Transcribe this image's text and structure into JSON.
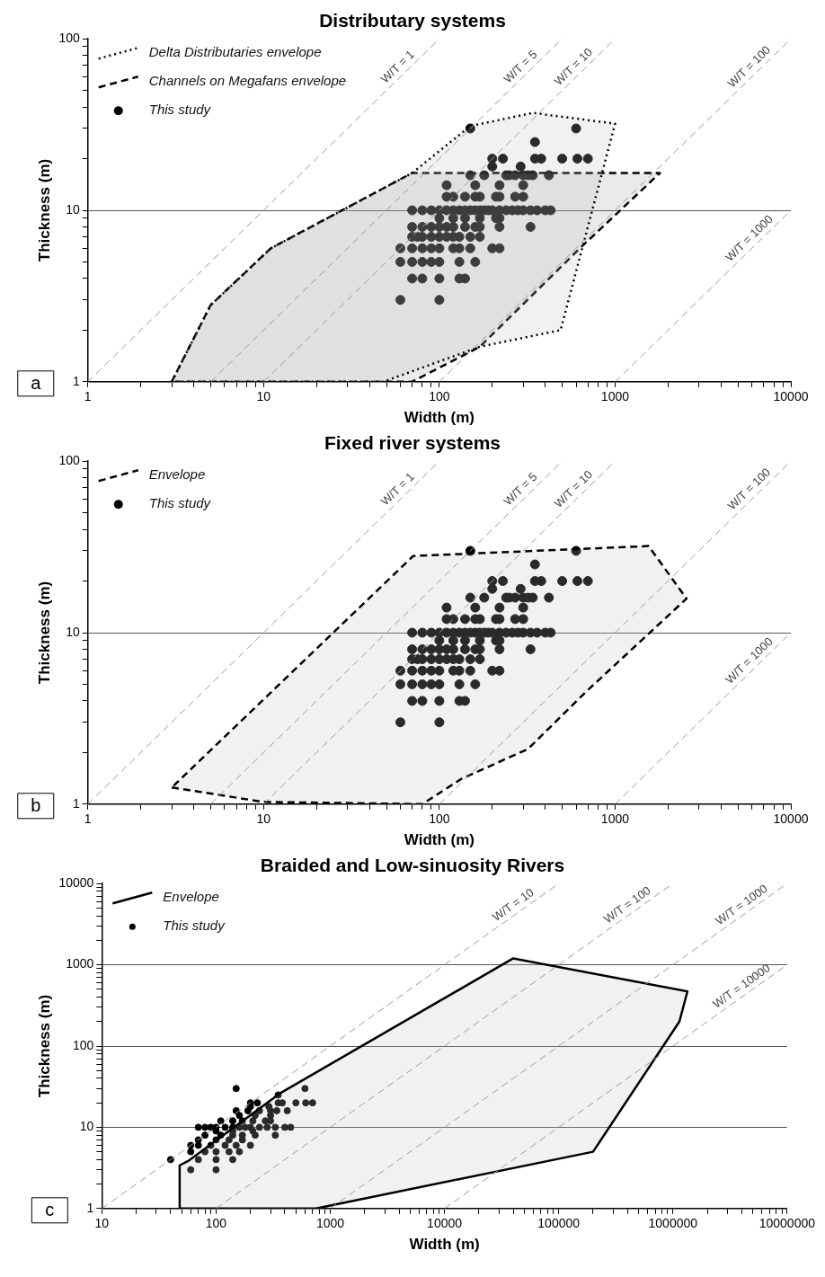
{
  "chart_data": [
    {
      "type": "scatter",
      "title": "Distributary systems",
      "xlabel": "Width (m)",
      "ylabel": "Thickness (m)",
      "annotations": [
        "a"
      ],
      "log": "xy",
      "grid": "y",
      "legend": "top left",
      "xlim": [
        1,
        10000
      ],
      "ylim": [
        1,
        100
      ],
      "xticks": [
        1,
        {
          "value": 2,
          "label": null
        },
        {
          "value": 3,
          "label": null
        },
        {
          "value": 4,
          "label": null
        },
        {
          "value": 5,
          "label": null
        },
        {
          "value": 6,
          "label": null
        },
        {
          "value": 7,
          "label": null
        },
        {
          "value": 8,
          "label": null
        },
        {
          "value": 9,
          "label": null
        },
        10,
        {
          "value": 20,
          "label": null
        },
        {
          "value": 30,
          "label": null
        },
        {
          "value": 40,
          "label": null
        },
        {
          "value": 50,
          "label": null
        },
        {
          "value": 60,
          "label": null
        },
        {
          "value": 70,
          "label": null
        },
        {
          "value": 80,
          "label": null
        },
        {
          "value": 90,
          "label": null
        },
        100,
        {
          "value": 200,
          "label": null
        },
        {
          "value": 300,
          "label": null
        },
        {
          "value": 400,
          "label": null
        },
        {
          "value": 500,
          "label": null
        },
        {
          "value": 600,
          "label": null
        },
        {
          "value": 700,
          "label": null
        },
        {
          "value": 800,
          "label": null
        },
        {
          "value": 900,
          "label": null
        },
        1000,
        {
          "value": 2000,
          "label": null
        },
        {
          "value": 3000,
          "label": null
        },
        {
          "value": 4000,
          "label": null
        },
        {
          "value": 5000,
          "label": null
        },
        {
          "value": 6000,
          "label": null
        },
        {
          "value": 7000,
          "label": null
        },
        {
          "value": 8000,
          "label": null
        },
        {
          "value": 9000,
          "label": null
        },
        10000
      ],
      "yticks": [
        1,
        {
          "value": 2,
          "label": null
        },
        {
          "value": 3,
          "label": null
        },
        {
          "value": 4,
          "label": null
        },
        {
          "value": 5,
          "label": null
        },
        {
          "value": 6,
          "label": null
        },
        {
          "value": 7,
          "label": null
        },
        {
          "value": 8,
          "label": null
        },
        {
          "value": 9,
          "label": null
        },
        10,
        {
          "value": 20,
          "label": null
        },
        {
          "value": 30,
          "label": null
        },
        {
          "value": 40,
          "label": null
        },
        {
          "value": 50,
          "label": null
        },
        {
          "value": 60,
          "label": null
        },
        {
          "value": 70,
          "label": null
        },
        {
          "value": 80,
          "label": null
        },
        {
          "value": 90,
          "label": null
        },
        100
      ],
      "series": [
        {
          "name": "W/T = 1",
          "type": "line",
          "line_style": "dashed",
          "marker": "none",
          "color": "#9a9a9a",
          "x": [
            1,
            100
          ],
          "values": [
            1,
            100
          ]
        },
        {
          "name": "W/T = 5",
          "type": "line",
          "line_style": "dashed",
          "marker": "none",
          "color": "#9a9a9a",
          "x": [
            5,
            500
          ],
          "values": [
            1,
            100
          ]
        },
        {
          "name": "W/T = 10",
          "type": "line",
          "line_style": "dashed",
          "marker": "none",
          "color": "#9a9a9a",
          "x": [
            10,
            1000
          ],
          "values": [
            1,
            100
          ]
        },
        {
          "name": "W/T = 100",
          "type": "line",
          "line_style": "dashed",
          "marker": "none",
          "color": "#9a9a9a",
          "x": [
            100,
            10000
          ],
          "values": [
            1,
            100
          ]
        },
        {
          "name": "W/T = 1000",
          "type": "line",
          "line_style": "dashed",
          "marker": "none",
          "color": "#9a9a9a",
          "x": [
            1000,
            10000
          ],
          "values": [
            1,
            10
          ]
        },
        {
          "name": "Delta Distributaries envelope",
          "type": "area",
          "line_style": "dotted",
          "marker": "none",
          "color": "#000000",
          "x": [
            3,
            5,
            11,
            70,
            150,
            340,
            1000,
            490,
            170,
            48,
            3
          ],
          "values": [
            1,
            2.8,
            6,
            16.5,
            31,
            37,
            32,
            2,
            1.6,
            1,
            1
          ]
        },
        {
          "name": "Channels on Megafans envelope",
          "type": "area",
          "line_style": "dashed",
          "marker": "none",
          "color": "#000000",
          "x": [
            3,
            5,
            11,
            70,
            1800,
            630,
            170,
            70,
            3
          ],
          "values": [
            1,
            2.8,
            6,
            16.5,
            16.5,
            6,
            1.6,
            1,
            1
          ]
        },
        {
          "name": "This study",
          "type": "scatter",
          "marker": "circle",
          "color": "#000000",
          "x": [
            60,
            100,
            70,
            80,
            100,
            130,
            140,
            60,
            70,
            80,
            90,
            100,
            130,
            160,
            60,
            70,
            80,
            90,
            100,
            120,
            130,
            150,
            200,
            220,
            70,
            75,
            80,
            90,
            100,
            110,
            120,
            130,
            150,
            170,
            70,
            80,
            90,
            100,
            110,
            120,
            140,
            160,
            170,
            220,
            330,
            100,
            120,
            140,
            170,
            210,
            220,
            70,
            80,
            90,
            100,
            110,
            120,
            130,
            140,
            150,
            160,
            170,
            180,
            190,
            200,
            220,
            240,
            260,
            280,
            300,
            330,
            360,
            400,
            430,
            110,
            120,
            140,
            160,
            170,
            210,
            220,
            270,
            300,
            110,
            160,
            220,
            300,
            150,
            180,
            240,
            250,
            270,
            300,
            320,
            340,
            420,
            200,
            290,
            200,
            230,
            350,
            380,
            500,
            610,
            700,
            350,
            150,
            600
          ],
          "values": [
            3,
            3,
            4,
            4,
            4,
            4,
            4,
            5,
            5,
            5,
            5,
            5,
            5,
            5,
            6,
            6,
            6,
            6,
            6,
            6,
            6,
            6,
            6,
            6,
            7,
            7,
            7,
            7,
            7,
            7,
            7,
            7,
            7,
            7,
            8,
            8,
            8,
            8,
            8,
            8,
            8,
            8,
            8,
            8,
            8,
            9,
            9,
            9,
            9,
            9,
            9,
            10,
            10,
            10,
            10,
            10,
            10,
            10,
            10,
            10,
            10,
            10,
            10,
            10,
            10,
            10,
            10,
            10,
            10,
            10,
            10,
            10,
            10,
            10,
            12,
            12,
            12,
            12,
            12,
            12,
            12,
            12,
            12,
            14,
            14,
            14,
            14,
            16,
            16,
            16,
            16,
            16,
            16,
            16,
            16,
            16,
            18,
            18,
            20,
            20,
            20,
            20,
            20,
            20,
            20,
            25,
            30,
            30
          ]
        }
      ]
    },
    {
      "type": "scatter",
      "title": "Fixed river systems",
      "xlabel": "Width (m)",
      "ylabel": "Thickness (m)",
      "annotations": [
        "b"
      ],
      "log": "xy",
      "grid": "y",
      "legend": "top left",
      "xlim": [
        1,
        10000
      ],
      "ylim": [
        1,
        100
      ],
      "xticks": [
        1,
        {
          "value": 2,
          "label": null
        },
        {
          "value": 3,
          "label": null
        },
        {
          "value": 4,
          "label": null
        },
        {
          "value": 5,
          "label": null
        },
        {
          "value": 6,
          "label": null
        },
        {
          "value": 7,
          "label": null
        },
        {
          "value": 8,
          "label": null
        },
        {
          "value": 9,
          "label": null
        },
        10,
        {
          "value": 20,
          "label": null
        },
        {
          "value": 30,
          "label": null
        },
        {
          "value": 40,
          "label": null
        },
        {
          "value": 50,
          "label": null
        },
        {
          "value": 60,
          "label": null
        },
        {
          "value": 70,
          "label": null
        },
        {
          "value": 80,
          "label": null
        },
        {
          "value": 90,
          "label": null
        },
        100,
        {
          "value": 200,
          "label": null
        },
        {
          "value": 300,
          "label": null
        },
        {
          "value": 400,
          "label": null
        },
        {
          "value": 500,
          "label": null
        },
        {
          "value": 600,
          "label": null
        },
        {
          "value": 700,
          "label": null
        },
        {
          "value": 800,
          "label": null
        },
        {
          "value": 900,
          "label": null
        },
        1000,
        {
          "value": 2000,
          "label": null
        },
        {
          "value": 3000,
          "label": null
        },
        {
          "value": 4000,
          "label": null
        },
        {
          "value": 5000,
          "label": null
        },
        {
          "value": 6000,
          "label": null
        },
        {
          "value": 7000,
          "label": null
        },
        {
          "value": 8000,
          "label": null
        },
        {
          "value": 9000,
          "label": null
        },
        10000
      ],
      "yticks": [
        1,
        {
          "value": 2,
          "label": null
        },
        {
          "value": 3,
          "label": null
        },
        {
          "value": 4,
          "label": null
        },
        {
          "value": 5,
          "label": null
        },
        {
          "value": 6,
          "label": null
        },
        {
          "value": 7,
          "label": null
        },
        {
          "value": 8,
          "label": null
        },
        {
          "value": 9,
          "label": null
        },
        10,
        {
          "value": 20,
          "label": null
        },
        {
          "value": 30,
          "label": null
        },
        {
          "value": 40,
          "label": null
        },
        {
          "value": 50,
          "label": null
        },
        {
          "value": 60,
          "label": null
        },
        {
          "value": 70,
          "label": null
        },
        {
          "value": 80,
          "label": null
        },
        {
          "value": 90,
          "label": null
        },
        100
      ],
      "series": [
        {
          "name": "W/T = 1",
          "type": "line",
          "line_style": "dashed",
          "marker": "none",
          "color": "#9a9a9a",
          "x": [
            1,
            100
          ],
          "values": [
            1,
            100
          ]
        },
        {
          "name": "W/T = 5",
          "type": "line",
          "line_style": "dashed",
          "marker": "none",
          "color": "#9a9a9a",
          "x": [
            5,
            500
          ],
          "values": [
            1,
            100
          ]
        },
        {
          "name": "W/T = 10",
          "type": "line",
          "line_style": "dashed",
          "marker": "none",
          "color": "#9a9a9a",
          "x": [
            10,
            1000
          ],
          "values": [
            1,
            100
          ]
        },
        {
          "name": "W/T = 100",
          "type": "line",
          "line_style": "dashed",
          "marker": "none",
          "color": "#9a9a9a",
          "x": [
            100,
            10000
          ],
          "values": [
            1,
            100
          ]
        },
        {
          "name": "W/T = 1000",
          "type": "line",
          "line_style": "dashed",
          "marker": "none",
          "color": "#9a9a9a",
          "x": [
            1000,
            10000
          ],
          "values": [
            1,
            10
          ]
        },
        {
          "name": "Envelope",
          "type": "area",
          "line_style": "dashed",
          "marker": "none",
          "color": "#000000",
          "x": [
            3,
            10,
            80,
            133,
            320,
            680,
            2550,
            1550,
            71,
            3
          ],
          "values": [
            1.25,
            1.03,
            1,
            1.4,
            2.1,
            4.5,
            15.8,
            32,
            28,
            1.25
          ]
        },
        {
          "name": "This study",
          "type": "scatter",
          "marker": "circle",
          "color": "#000000",
          "x": [
            60,
            100,
            70,
            80,
            100,
            130,
            140,
            60,
            70,
            80,
            90,
            100,
            130,
            160,
            60,
            70,
            80,
            90,
            100,
            120,
            130,
            150,
            200,
            220,
            70,
            75,
            80,
            90,
            100,
            110,
            120,
            130,
            150,
            170,
            70,
            80,
            90,
            100,
            110,
            120,
            140,
            160,
            170,
            220,
            330,
            100,
            120,
            140,
            170,
            210,
            220,
            70,
            80,
            90,
            100,
            110,
            120,
            130,
            140,
            150,
            160,
            170,
            180,
            190,
            200,
            220,
            240,
            260,
            280,
            300,
            330,
            360,
            400,
            430,
            110,
            120,
            140,
            160,
            170,
            210,
            220,
            270,
            300,
            110,
            160,
            220,
            300,
            150,
            180,
            240,
            250,
            270,
            300,
            320,
            340,
            420,
            200,
            290,
            200,
            230,
            350,
            380,
            500,
            610,
            700,
            350,
            150,
            600
          ],
          "values": [
            3,
            3,
            4,
            4,
            4,
            4,
            4,
            5,
            5,
            5,
            5,
            5,
            5,
            5,
            6,
            6,
            6,
            6,
            6,
            6,
            6,
            6,
            6,
            6,
            7,
            7,
            7,
            7,
            7,
            7,
            7,
            7,
            7,
            7,
            8,
            8,
            8,
            8,
            8,
            8,
            8,
            8,
            8,
            8,
            8,
            9,
            9,
            9,
            9,
            9,
            9,
            10,
            10,
            10,
            10,
            10,
            10,
            10,
            10,
            10,
            10,
            10,
            10,
            10,
            10,
            10,
            10,
            10,
            10,
            10,
            10,
            10,
            10,
            10,
            12,
            12,
            12,
            12,
            12,
            12,
            12,
            12,
            12,
            14,
            14,
            14,
            14,
            16,
            16,
            16,
            16,
            16,
            16,
            16,
            16,
            16,
            18,
            18,
            20,
            20,
            20,
            20,
            20,
            20,
            20,
            25,
            30,
            30
          ]
        }
      ]
    },
    {
      "type": "scatter",
      "title": "Braided and Low-sinuosity Rivers",
      "xlabel": "Width (m)",
      "ylabel": "Thickness (m)",
      "annotations": [
        "c"
      ],
      "log": "xy",
      "grid": "y",
      "legend": "top left",
      "xlim": [
        10,
        10000000
      ],
      "ylim": [
        1,
        10000
      ],
      "xticks": [
        10,
        {
          "value": 20,
          "label": null
        },
        {
          "value": 30,
          "label": null
        },
        {
          "value": 40,
          "label": null
        },
        {
          "value": 50,
          "label": null
        },
        {
          "value": 60,
          "label": null
        },
        {
          "value": 70,
          "label": null
        },
        {
          "value": 80,
          "label": null
        },
        {
          "value": 90,
          "label": null
        },
        100,
        {
          "value": 200,
          "label": null
        },
        {
          "value": 300,
          "label": null
        },
        {
          "value": 400,
          "label": null
        },
        {
          "value": 500,
          "label": null
        },
        {
          "value": 600,
          "label": null
        },
        {
          "value": 700,
          "label": null
        },
        {
          "value": 800,
          "label": null
        },
        {
          "value": 900,
          "label": null
        },
        1000,
        {
          "value": 2000,
          "label": null
        },
        {
          "value": 3000,
          "label": null
        },
        {
          "value": 4000,
          "label": null
        },
        {
          "value": 5000,
          "label": null
        },
        {
          "value": 6000,
          "label": null
        },
        {
          "value": 7000,
          "label": null
        },
        {
          "value": 8000,
          "label": null
        },
        {
          "value": 9000,
          "label": null
        },
        10000,
        {
          "value": 20000,
          "label": null
        },
        {
          "value": 30000,
          "label": null
        },
        {
          "value": 40000,
          "label": null
        },
        {
          "value": 50000,
          "label": null
        },
        {
          "value": 60000,
          "label": null
        },
        {
          "value": 70000,
          "label": null
        },
        {
          "value": 80000,
          "label": null
        },
        {
          "value": 90000,
          "label": null
        },
        100000,
        {
          "value": 200000,
          "label": null
        },
        {
          "value": 300000,
          "label": null
        },
        {
          "value": 400000,
          "label": null
        },
        {
          "value": 500000,
          "label": null
        },
        {
          "value": 600000,
          "label": null
        },
        {
          "value": 700000,
          "label": null
        },
        {
          "value": 800000,
          "label": null
        },
        {
          "value": 900000,
          "label": null
        },
        1000000,
        {
          "value": 2000000,
          "label": null
        },
        {
          "value": 3000000,
          "label": null
        },
        {
          "value": 4000000,
          "label": null
        },
        {
          "value": 5000000,
          "label": null
        },
        {
          "value": 6000000,
          "label": null
        },
        {
          "value": 7000000,
          "label": null
        },
        {
          "value": 8000000,
          "label": null
        },
        {
          "value": 9000000,
          "label": null
        },
        10000000
      ],
      "yticks": [
        1,
        {
          "value": 2,
          "label": null
        },
        {
          "value": 3,
          "label": null
        },
        {
          "value": 4,
          "label": null
        },
        {
          "value": 5,
          "label": null
        },
        {
          "value": 6,
          "label": null
        },
        {
          "value": 7,
          "label": null
        },
        {
          "value": 8,
          "label": null
        },
        {
          "value": 9,
          "label": null
        },
        10,
        {
          "value": 20,
          "label": null
        },
        {
          "value": 30,
          "label": null
        },
        {
          "value": 40,
          "label": null
        },
        {
          "value": 50,
          "label": null
        },
        {
          "value": 60,
          "label": null
        },
        {
          "value": 70,
          "label": null
        },
        {
          "value": 80,
          "label": null
        },
        {
          "value": 90,
          "label": null
        },
        100,
        {
          "value": 200,
          "label": null
        },
        {
          "value": 300,
          "label": null
        },
        {
          "value": 400,
          "label": null
        },
        {
          "value": 500,
          "label": null
        },
        {
          "value": 600,
          "label": null
        },
        {
          "value": 700,
          "label": null
        },
        {
          "value": 800,
          "label": null
        },
        {
          "value": 900,
          "label": null
        },
        1000,
        {
          "value": 2000,
          "label": null
        },
        {
          "value": 3000,
          "label": null
        },
        {
          "value": 4000,
          "label": null
        },
        {
          "value": 5000,
          "label": null
        },
        {
          "value": 6000,
          "label": null
        },
        {
          "value": 7000,
          "label": null
        },
        {
          "value": 8000,
          "label": null
        },
        {
          "value": 9000,
          "label": null
        },
        10000
      ],
      "series": [
        {
          "name": "W/T = 10",
          "type": "line",
          "line_style": "dashed",
          "marker": "none",
          "color": "#9a9a9a",
          "x": [
            10,
            100000
          ],
          "values": [
            1,
            10000
          ]
        },
        {
          "name": "W/T = 100",
          "type": "line",
          "line_style": "dashed",
          "marker": "none",
          "color": "#9a9a9a",
          "x": [
            100,
            1000000
          ],
          "values": [
            1,
            10000
          ]
        },
        {
          "name": "W/T = 1000",
          "type": "line",
          "line_style": "dashed",
          "marker": "none",
          "color": "#9a9a9a",
          "x": [
            1000,
            10000000
          ],
          "values": [
            1,
            10000
          ]
        },
        {
          "name": "W/T = 10000",
          "type": "line",
          "line_style": "dashed",
          "marker": "none",
          "color": "#9a9a9a",
          "x": [
            10000,
            10000000
          ],
          "values": [
            1,
            1000
          ]
        },
        {
          "name": "Envelope",
          "type": "area",
          "line_style": "solid",
          "marker": "none",
          "color": "#000000",
          "x": [
            48,
            48,
            58,
            360,
            40000,
            1340000,
            1140000,
            200000,
            750,
            48
          ],
          "values": [
            1,
            3.4,
            3.9,
            26,
            1200,
            470,
            200,
            5,
            1,
            1
          ]
        },
        {
          "name": "This study",
          "type": "scatter",
          "marker": "circle",
          "color": "#000000",
          "x": [
            60,
            100,
            40,
            70,
            100,
            140,
            60,
            80,
            100,
            130,
            160,
            60,
            70,
            90,
            120,
            150,
            200,
            70,
            100,
            130,
            170,
            80,
            110,
            140,
            170,
            220,
            330,
            100,
            140,
            210,
            70,
            80,
            90,
            100,
            120,
            140,
            160,
            180,
            200,
            240,
            280,
            330,
            400,
            450,
            110,
            140,
            170,
            210,
            270,
            300,
            160,
            220,
            300,
            150,
            190,
            240,
            300,
            340,
            420,
            200,
            290,
            200,
            230,
            350,
            380,
            500,
            610,
            700,
            350,
            150,
            600
          ],
          "values": [
            3,
            3,
            4,
            4,
            4,
            4,
            5,
            5,
            5,
            5,
            5,
            6,
            6,
            6,
            6,
            6,
            6,
            7,
            7,
            7,
            7,
            8,
            8,
            8,
            8,
            8,
            8,
            9,
            9,
            9,
            10,
            10,
            10,
            10,
            10,
            10,
            10,
            10,
            10,
            10,
            10,
            10,
            10,
            10,
            12,
            12,
            12,
            12,
            12,
            12,
            14,
            14,
            14,
            16,
            16,
            16,
            16,
            16,
            16,
            18,
            18,
            20,
            20,
            20,
            20,
            20,
            20,
            20,
            25,
            30,
            30
          ]
        }
      ]
    }
  ]
}
